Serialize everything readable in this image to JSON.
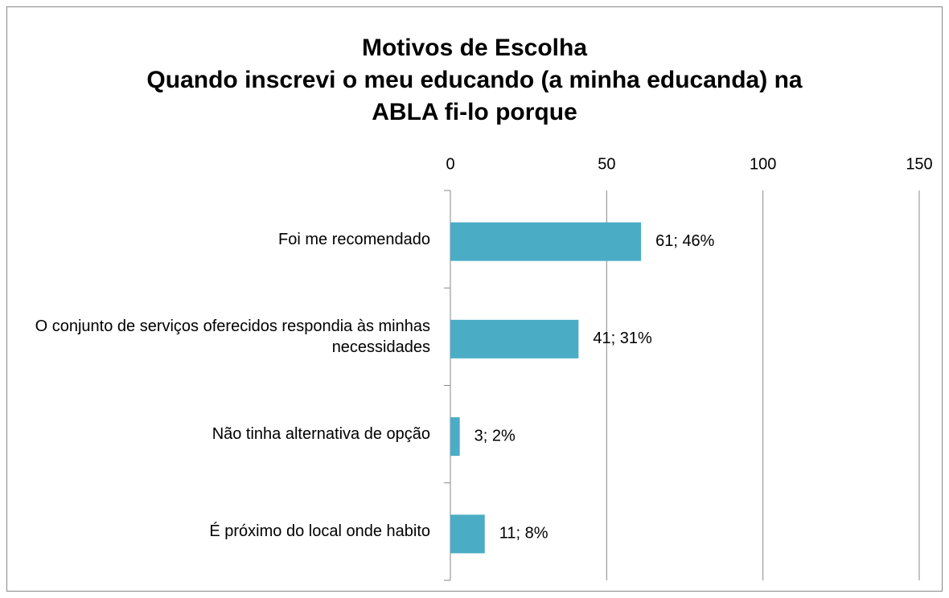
{
  "chart_data": {
    "type": "bar",
    "orientation": "horizontal",
    "title": "Motivos de Escolha",
    "subtitle": "Quando inscrevi o meu educando (a minha educanda) na ABLA fi-lo porque",
    "categories": [
      "Foi me recomendado",
      "O conjunto de serviços oferecidos respondia às minhas necessidades",
      "Não tinha alternativa de opção",
      "É próximo do local onde habito"
    ],
    "values": [
      61,
      41,
      3,
      11
    ],
    "value_labels": [
      "61; 46%",
      "41; 31%",
      "3; 2%",
      "11; 8%"
    ],
    "color": "#4bacc6",
    "xlim": [
      0,
      150
    ],
    "xticks": [
      0,
      50,
      100,
      150
    ],
    "grid": true
  }
}
